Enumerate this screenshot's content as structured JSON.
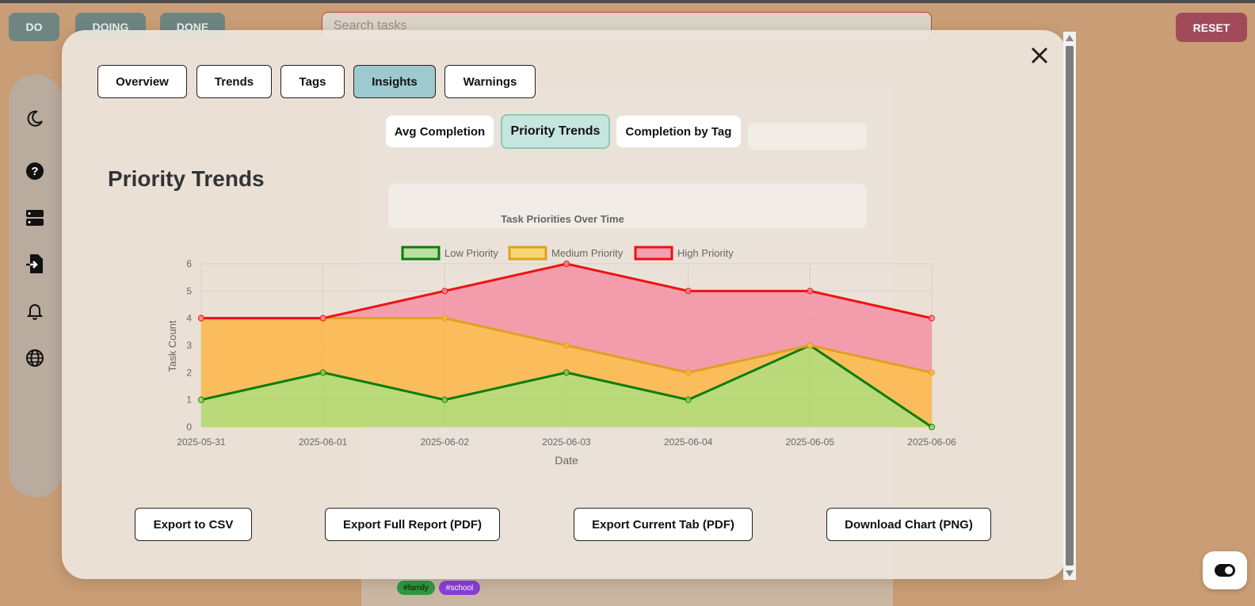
{
  "board": {
    "columns": [
      "DO",
      "DOING",
      "DONE"
    ],
    "search_placeholder": "Search tasks",
    "reset_label": "RESET"
  },
  "sidebar": {
    "icons": [
      "moon-icon",
      "help-icon",
      "storage-icon",
      "import-icon",
      "bell-icon",
      "globe-icon"
    ]
  },
  "background": {
    "tags": [
      "#family",
      "#school"
    ]
  },
  "modal": {
    "tabs": [
      "Overview",
      "Trends",
      "Tags",
      "Insights",
      "Warnings"
    ],
    "active_tab": "Insights",
    "subtabs": [
      "Avg Completion",
      "Priority Trends",
      "Completion by Tag"
    ],
    "active_subtab": "Priority Trends",
    "section_title": "Priority Trends",
    "exports": [
      "Export to CSV",
      "Export Full Report (PDF)",
      "Export Current Tab (PDF)",
      "Download Chart (PNG)"
    ]
  },
  "colors": {
    "accent_tab": "#9ccad0",
    "low": "#0a7d0a",
    "medium": "#e0a020",
    "high": "#ee1111",
    "reset": "#a04a5a"
  },
  "chart_data": {
    "type": "area",
    "title": "Task Priorities Over Time",
    "xlabel": "Date",
    "ylabel": "Task Count",
    "x": [
      "2025-05-31",
      "2025-06-01",
      "2025-06-02",
      "2025-06-03",
      "2025-06-04",
      "2025-06-05",
      "2025-06-06"
    ],
    "stacked": true,
    "ylim": [
      0,
      6
    ],
    "yticks": [
      0,
      1,
      2,
      3,
      4,
      5,
      6
    ],
    "grid": true,
    "legend": "top",
    "series": [
      {
        "name": "Low Priority",
        "values": [
          1,
          2,
          1,
          2,
          1,
          3,
          0
        ],
        "color": "#0a7d0a"
      },
      {
        "name": "Medium Priority",
        "values": [
          3,
          2,
          3,
          1,
          1,
          0,
          2
        ],
        "color": "#e0a020"
      },
      {
        "name": "High Priority",
        "values": [
          0,
          0,
          1,
          3,
          3,
          2,
          2
        ],
        "color": "#ee1111"
      }
    ]
  }
}
